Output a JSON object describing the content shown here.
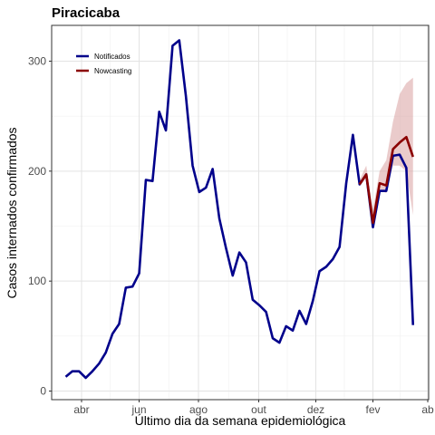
{
  "chart_data": {
    "type": "line",
    "title": "Piracicaba",
    "xlabel": "Último dia da semana epidemiológica",
    "ylabel": "Casos internados confirmados",
    "x_tick_labels": [
      "abr",
      "jun",
      "ago",
      "out",
      "dez",
      "fev",
      "ab"
    ],
    "y_ticks": [
      0,
      100,
      200,
      300
    ],
    "ylim": [
      0,
      330
    ],
    "grid": true,
    "legend_position": "top-left",
    "series": [
      {
        "name": "Notificados",
        "color": "#00008b",
        "values": [
          13,
          18,
          18,
          12,
          18,
          25,
          35,
          52,
          61,
          94,
          95,
          107,
          192,
          191,
          254,
          237,
          314,
          319,
          268,
          205,
          181,
          185,
          202,
          157,
          130,
          105,
          126,
          117,
          83,
          78,
          72,
          48,
          44,
          59,
          55,
          73,
          61,
          82,
          109,
          113,
          120,
          131,
          189,
          233,
          188,
          197,
          149,
          182,
          182,
          214,
          215,
          203,
          60
        ]
      },
      {
        "name": "Nowcasting",
        "color": "#8b0000",
        "start_index": 44,
        "values": [
          188,
          197,
          153,
          189,
          187,
          220,
          226,
          231,
          213
        ],
        "band_lower": [
          186,
          194,
          150,
          183,
          180,
          205,
          205,
          200,
          160
        ],
        "band_upper": [
          192,
          205,
          165,
          200,
          210,
          245,
          270,
          280,
          285
        ]
      }
    ]
  }
}
